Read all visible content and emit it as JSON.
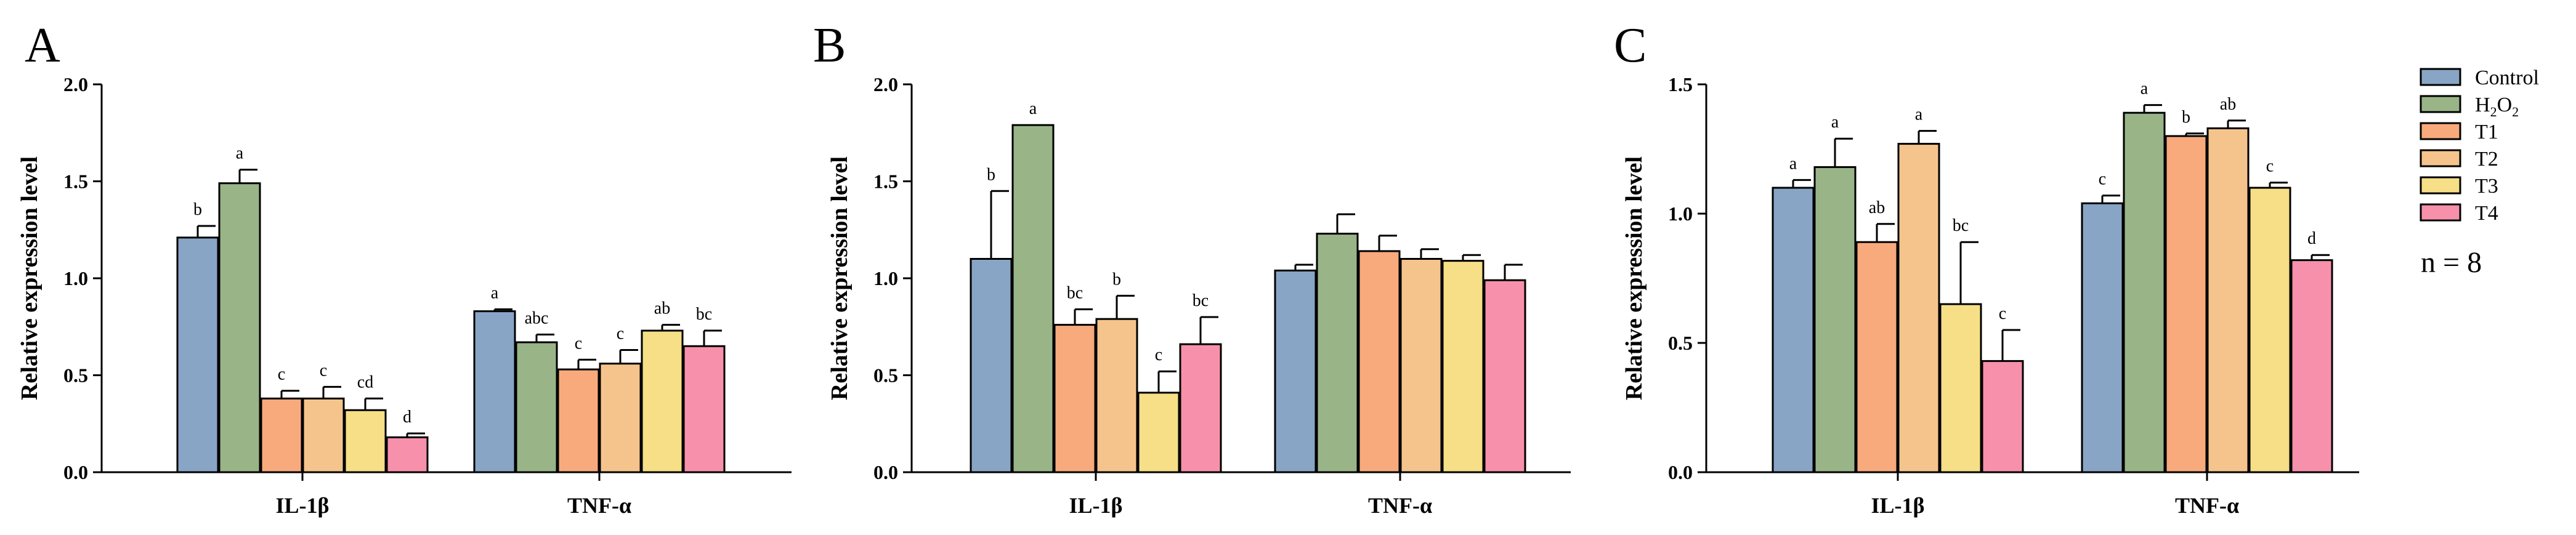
{
  "chart_data": [
    {
      "panel": "A",
      "type": "bar",
      "ylabel": "Relative expression level",
      "ylim": [
        0,
        2.0
      ],
      "yticks": [
        "0.0",
        "0.5",
        "1.0",
        "1.5",
        "2.0"
      ],
      "categories": [
        "IL-1β",
        "TNF-α"
      ],
      "series": [
        {
          "name": "Control",
          "values": [
            1.21,
            0.83
          ],
          "errors": [
            0.06,
            0.01
          ],
          "letters": [
            "b",
            "a"
          ]
        },
        {
          "name": "H2O2",
          "values": [
            1.49,
            0.67
          ],
          "errors": [
            0.07,
            0.04
          ],
          "letters": [
            "a",
            "abc"
          ]
        },
        {
          "name": "T1",
          "values": [
            0.38,
            0.53
          ],
          "errors": [
            0.04,
            0.05
          ],
          "letters": [
            "c",
            "c"
          ]
        },
        {
          "name": "T2",
          "values": [
            0.38,
            0.56
          ],
          "errors": [
            0.06,
            0.07
          ],
          "letters": [
            "c",
            "c"
          ]
        },
        {
          "name": "T3",
          "values": [
            0.32,
            0.73
          ],
          "errors": [
            0.06,
            0.03
          ],
          "letters": [
            "cd",
            "ab"
          ]
        },
        {
          "name": "T4",
          "values": [
            0.18,
            0.65
          ],
          "errors": [
            0.02,
            0.08
          ],
          "letters": [
            "d",
            "bc"
          ]
        }
      ]
    },
    {
      "panel": "B",
      "type": "bar",
      "ylabel": "Relative expression level",
      "ylim": [
        0,
        2.0
      ],
      "yticks": [
        "0.0",
        "0.5",
        "1.0",
        "1.5",
        "2.0"
      ],
      "categories": [
        "IL-1β",
        "TNF-α"
      ],
      "series": [
        {
          "name": "Control",
          "values": [
            1.1,
            1.04
          ],
          "errors": [
            0.35,
            0.03
          ],
          "letters": [
            "b",
            ""
          ]
        },
        {
          "name": "H2O2",
          "values": [
            1.79,
            1.23
          ],
          "errors": [
            0.0,
            0.1
          ],
          "letters": [
            "a",
            ""
          ]
        },
        {
          "name": "T1",
          "values": [
            0.76,
            1.14
          ],
          "errors": [
            0.08,
            0.08
          ],
          "letters": [
            "bc",
            ""
          ]
        },
        {
          "name": "T2",
          "values": [
            0.79,
            1.1
          ],
          "errors": [
            0.12,
            0.05
          ],
          "letters": [
            "b",
            ""
          ]
        },
        {
          "name": "T3",
          "values": [
            0.41,
            1.09
          ],
          "errors": [
            0.11,
            0.03
          ],
          "letters": [
            "c",
            ""
          ]
        },
        {
          "name": "T4",
          "values": [
            0.66,
            0.99
          ],
          "errors": [
            0.14,
            0.08
          ],
          "letters": [
            "bc",
            ""
          ]
        }
      ]
    },
    {
      "panel": "C",
      "type": "bar",
      "ylabel": "Relative expression level",
      "ylim": [
        0,
        1.5
      ],
      "yticks": [
        "0.0",
        "0.5",
        "1.0",
        "1.5"
      ],
      "categories": [
        "IL-1β",
        "TNF-α"
      ],
      "series": [
        {
          "name": "Control",
          "values": [
            1.1,
            1.04
          ],
          "errors": [
            0.03,
            0.03
          ],
          "letters": [
            "a",
            "c"
          ]
        },
        {
          "name": "H2O2",
          "values": [
            1.18,
            1.39
          ],
          "errors": [
            0.11,
            0.03
          ],
          "letters": [
            "a",
            "a"
          ]
        },
        {
          "name": "T1",
          "values": [
            0.89,
            1.3
          ],
          "errors": [
            0.07,
            0.01
          ],
          "letters": [
            "ab",
            "b"
          ]
        },
        {
          "name": "T2",
          "values": [
            1.27,
            1.33
          ],
          "errors": [
            0.05,
            0.03
          ],
          "letters": [
            "a",
            "ab"
          ]
        },
        {
          "name": "T3",
          "values": [
            0.65,
            1.1
          ],
          "errors": [
            0.24,
            0.02
          ],
          "letters": [
            "bc",
            "c"
          ]
        },
        {
          "name": "T4",
          "values": [
            0.43,
            0.82
          ],
          "errors": [
            0.12,
            0.02
          ],
          "letters": [
            "c",
            "d"
          ]
        }
      ]
    }
  ],
  "legend": {
    "entries": [
      {
        "label": "Control",
        "sub": "",
        "color": "#88a5c6"
      },
      {
        "label": "H",
        "sub": "2",
        "label2": "O",
        "sub2": "2",
        "color": "#99b588"
      },
      {
        "label": "T1",
        "sub": "",
        "color": "#f8aa7c"
      },
      {
        "label": "T2",
        "sub": "",
        "color": "#f5c48c"
      },
      {
        "label": "T3",
        "sub": "",
        "color": "#f6df86"
      },
      {
        "label": "T4",
        "sub": "",
        "color": "#f791ab"
      }
    ],
    "n_label": "n = 8"
  },
  "colors": [
    "#88a5c6",
    "#99b588",
    "#f8aa7c",
    "#f5c48c",
    "#f6df86",
    "#f791ab"
  ]
}
